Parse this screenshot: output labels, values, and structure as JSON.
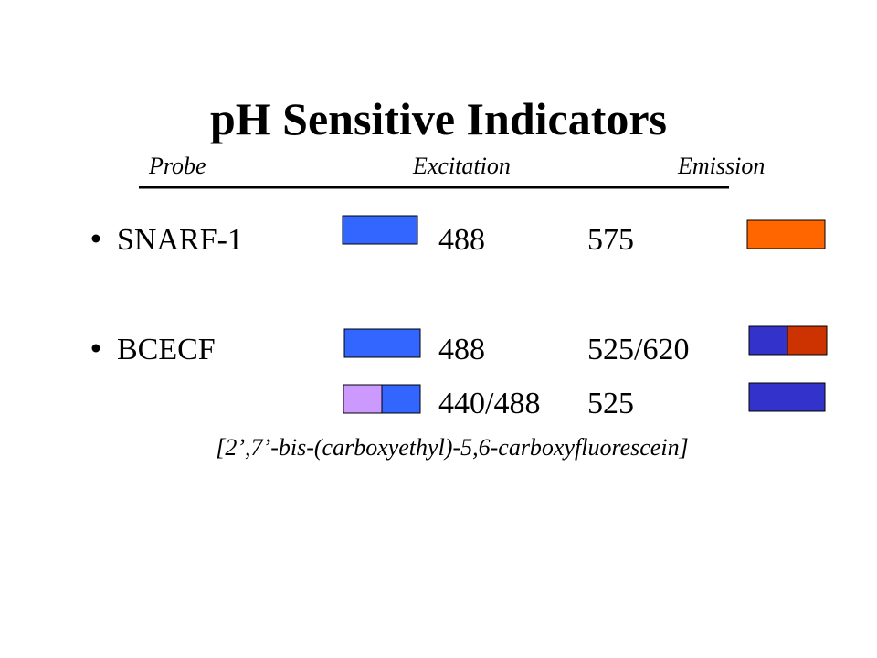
{
  "header": {
    "title": "pH Sensitive Indicators"
  },
  "table": {
    "columns": [
      "Probe",
      "Excitation",
      "Emission"
    ],
    "rows": [
      {
        "probe": "SNARF-1",
        "excitation": "488",
        "emission": "575"
      },
      {
        "probe": "BCECF",
        "excitation": "488",
        "emission": "525/620"
      },
      {
        "excitation": "440/488",
        "emission": "525"
      }
    ]
  },
  "footnote": "[2’,7’-bis-(carboxyethyl)-5,6-carboxyfluorescein]"
}
